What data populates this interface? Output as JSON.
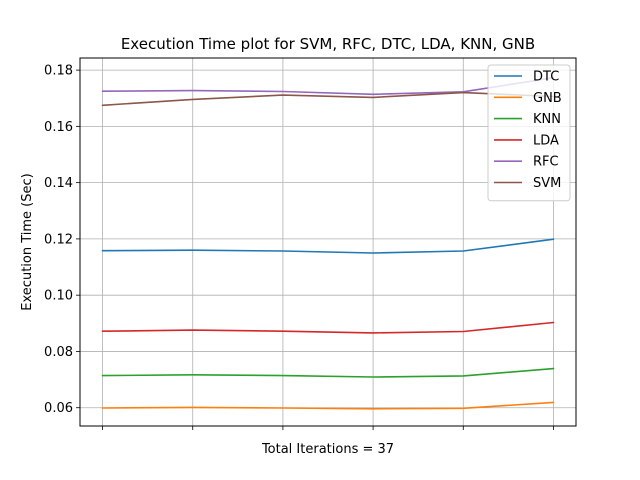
{
  "chart_data": {
    "type": "line",
    "title": "Execution Time plot for SVM, RFC, DTC, LDA, KNN, GNB",
    "xlabel": "Total Iterations = 37",
    "ylabel": "Execution Time (Sec)",
    "x": [
      1,
      2,
      3,
      4,
      5,
      6
    ],
    "xlim": [
      0.75,
      6.25
    ],
    "ylim": [
      0.0535,
      0.1843
    ],
    "yticks": [
      0.06,
      0.08,
      0.1,
      0.12,
      0.14,
      0.16,
      0.18
    ],
    "ytick_labels": [
      "0.06",
      "0.08",
      "0.10",
      "0.12",
      "0.14",
      "0.16",
      "0.18"
    ],
    "grid": true,
    "legend_position": "top-right",
    "series": [
      {
        "name": "DTC",
        "color": "#1f77b4",
        "values": [
          0.1158,
          0.116,
          0.1157,
          0.115,
          0.1157,
          0.1199
        ]
      },
      {
        "name": "GNB",
        "color": "#ff7f0e",
        "values": [
          0.0599,
          0.0601,
          0.0599,
          0.0596,
          0.0598,
          0.0619
        ]
      },
      {
        "name": "KNN",
        "color": "#2ca02c",
        "values": [
          0.0714,
          0.0717,
          0.0714,
          0.0709,
          0.0713,
          0.0739
        ]
      },
      {
        "name": "LDA",
        "color": "#d62728",
        "values": [
          0.0872,
          0.0876,
          0.0872,
          0.0866,
          0.0871,
          0.0903
        ]
      },
      {
        "name": "RFC",
        "color": "#9467bd",
        "values": [
          0.1725,
          0.1727,
          0.1724,
          0.1714,
          0.1723,
          0.1773
        ]
      },
      {
        "name": "SVM",
        "color": "#8c564b",
        "values": [
          0.1675,
          0.1696,
          0.1711,
          0.1703,
          0.172,
          0.1706
        ]
      }
    ]
  }
}
